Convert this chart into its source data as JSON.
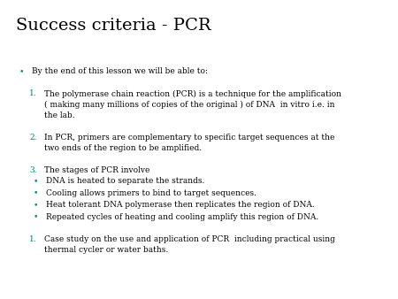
{
  "title": "Success criteria - PCR",
  "background_color": "#ffffff",
  "title_color": "#000000",
  "title_fontsize": 14,
  "text_color": "#000000",
  "bullet_color": "#008080",
  "number_color": "#008080",
  "font_family": "serif",
  "content": [
    {
      "type": "bullet",
      "level": 0,
      "text": "By the end of this lesson we will be able to:"
    },
    {
      "type": "spacer",
      "size": 1.5
    },
    {
      "type": "numbered",
      "num": "1.",
      "lines": [
        "The polymerase chain reaction (PCR) is a technique for the amplification",
        "( making many millions of copies of the original ) of DNA  in vitro i.e. in",
        "the lab."
      ]
    },
    {
      "type": "spacer",
      "size": 1.5
    },
    {
      "type": "numbered",
      "num": "2.",
      "lines": [
        "In PCR, primers are complementary to specific target sequences at the",
        "two ends of the region to be amplified."
      ]
    },
    {
      "type": "spacer",
      "size": 1.5
    },
    {
      "type": "numbered",
      "num": "3.",
      "lines": [
        "The stages of PCR involve"
      ]
    },
    {
      "type": "bullet",
      "level": 1,
      "text": "DNA is heated to separate the strands."
    },
    {
      "type": "bullet",
      "level": 1,
      "text": "Cooling allows primers to bind to target sequences."
    },
    {
      "type": "bullet",
      "level": 1,
      "text": "Heat tolerant DNA polymerase then replicates the region of DNA."
    },
    {
      "type": "bullet",
      "level": 1,
      "text": "Repeated cycles of heating and cooling amplify this region of DNA."
    },
    {
      "type": "spacer",
      "size": 1.5
    },
    {
      "type": "numbered",
      "num": "1.",
      "lines": [
        "Case study on the use and application of PCR  including practical using",
        "thermal cycler or water baths."
      ]
    }
  ]
}
